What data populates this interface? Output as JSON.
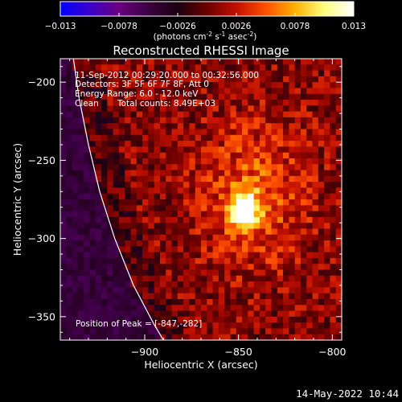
{
  "window": {
    "timestamp": "14-May-2022 10:44"
  },
  "colorbar": {
    "ticks": [
      "-0.013",
      "-0.0078",
      "-0.0026",
      "0.0026",
      "0.0078",
      "0.013"
    ],
    "tick_values": [
      -0.013,
      -0.0078,
      -0.0026,
      0.0026,
      0.0078,
      0.013
    ],
    "range": [
      -0.013,
      0.013
    ],
    "unit_prefix": "(photons cm",
    "unit_exp1": "-2",
    "unit_mid1": " s",
    "unit_exp2": "-1",
    "unit_mid2": " asec",
    "unit_exp3": "-2",
    "unit_suffix": ")",
    "colormap": [
      "#0000ff",
      "#3a00c8",
      "#6a0080",
      "#3a0040",
      "#1a0010",
      "#6a0000",
      "#c01000",
      "#ff5000",
      "#ffb000",
      "#ffff80",
      "#ffffff"
    ]
  },
  "chart_data": {
    "type": "heatmap",
    "title": "Reconstructed RHESSI Image",
    "xlabel": "Heliocentric X (arcsec)",
    "ylabel": "Heliocentric Y (arcsec)",
    "xlim": [
      -945,
      -795
    ],
    "ylim": [
      -365,
      -185
    ],
    "x_ticks": [
      -900,
      -850,
      -800
    ],
    "y_ticks": [
      -200,
      -250,
      -300,
      -350
    ],
    "x_tick_labels": [
      "-900",
      "-850",
      "-800"
    ],
    "y_tick_labels": [
      "-200",
      "-250",
      "-300",
      "-350"
    ],
    "peak": {
      "x": -847,
      "y": -282,
      "value": 0.013
    },
    "limb_line": [
      [
        -938,
        -185
      ],
      [
        -935,
        -210
      ],
      [
        -930,
        -240
      ],
      [
        -924,
        -270
      ],
      [
        -916,
        -300
      ],
      [
        -906,
        -330
      ],
      [
        -895,
        -355
      ],
      [
        -890,
        -365
      ]
    ],
    "annotations": {
      "time_range": "11-Sep-2012 00:29:20.000 to 00:32:56.000",
      "detectors": "Detectors: 3F 5F 6F 7F 8F, Att 0",
      "energy_range": "Energy Range: 6.0 - 12.0 keV",
      "method": "Clean",
      "total_counts": "Total counts: 8.49E+03",
      "peak_label": "Position of Peak = [-847,-282]"
    }
  }
}
